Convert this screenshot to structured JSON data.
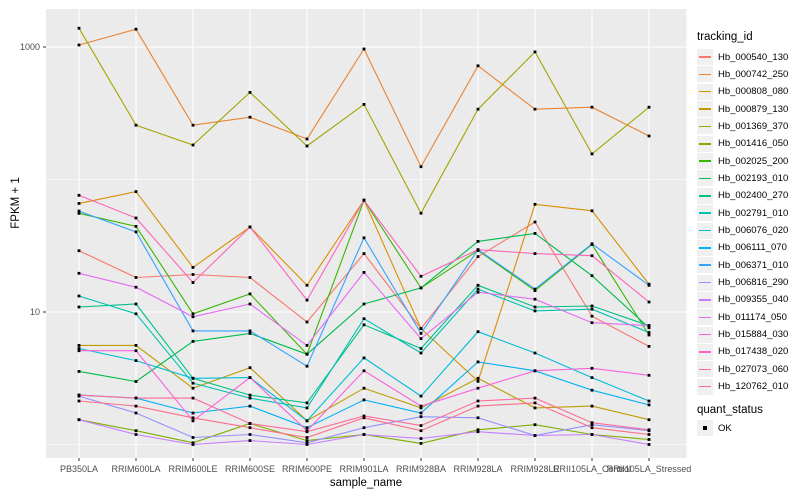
{
  "axes": {
    "x_title": "sample_name",
    "y_title": "FPKM + 1",
    "y_ticks": [
      {
        "label": "1000",
        "value": 1000
      },
      {
        "label": "10",
        "value": 10
      }
    ],
    "y_minor_values": [
      100,
      1
    ]
  },
  "legend": {
    "tracking_title": "tracking_id",
    "quant_title": "quant_status",
    "quant_items": [
      {
        "label": "OK",
        "marker": "black-square"
      }
    ]
  },
  "colors": {
    "panel_background": "#EBEBEB",
    "gridline": "#FFFFFF",
    "tick_mark": "#333333",
    "tick_text": "#4D4D4D",
    "marker": "#000000",
    "legend_key_background": "#F0F0F0"
  },
  "chart_data": {
    "type": "line",
    "x_type": "categorical",
    "y_scale": "log10",
    "ylim": [
      1,
      1500
    ],
    "grid": "major-white-on-grey-panel",
    "legend_position": "right",
    "marker": "black-square",
    "title": "",
    "xlabel": "sample_name",
    "ylabel": "FPKM + 1",
    "categories": [
      "PB350LA",
      "RRIM600LA",
      "RRIM600LE",
      "RRIM600SE",
      "RRIM600PE",
      "RRIM901LA",
      "RRIM928BA",
      "RRIM928LA",
      "RRIM928LE",
      "RRII105LA_Control",
      "RRII105LA_Stressed"
    ],
    "series": [
      {
        "name": "Hb_000540_130",
        "color": "#F8766D",
        "values": [
          29,
          18.2,
          19.2,
          18.2,
          8.4,
          27.6,
          7.5,
          26.2,
          47.8,
          9.3,
          5.5
        ]
      },
      {
        "name": "Hb_000742_250",
        "color": "#EA8331",
        "values": [
          1035,
          1362,
          257,
          295,
          202,
          966,
          125,
          721,
          339,
          351,
          213
        ]
      },
      {
        "name": "Hb_000808_080",
        "color": "#D89000",
        "values": [
          66,
          81,
          21.7,
          43.8,
          15.9,
          69.8,
          7.5,
          3.0,
          65,
          58,
          16.2
        ]
      },
      {
        "name": "Hb_000879_130",
        "color": "#C09B00",
        "values": [
          5.6,
          5.6,
          2.66,
          3.8,
          1.51,
          2.66,
          1.89,
          3.16,
          1.89,
          1.95,
          1.54
        ]
      },
      {
        "name": "Hb_001369_370",
        "color": "#A3A500",
        "values": [
          1387,
          257,
          182,
          454,
          179,
          369,
          55.7,
          339,
          918,
          156,
          351
        ]
      },
      {
        "name": "Hb_001416_050",
        "color": "#7CAE00",
        "values": [
          1.54,
          1.27,
          1.03,
          1.44,
          1.07,
          1.19,
          1.02,
          1.29,
          1.41,
          1.19,
          1.09
        ]
      },
      {
        "name": "Hb_002025_200",
        "color": "#39B600",
        "values": [
          55.6,
          44.3,
          9.7,
          13.7,
          4.8,
          69.8,
          15.2,
          29.1,
          14.5,
          32.3,
          6.7
        ]
      },
      {
        "name": "Hb_002193_010",
        "color": "#00BB4E",
        "values": [
          3.56,
          2.99,
          6.0,
          6.9,
          4.8,
          11.5,
          15.2,
          34.1,
          39.2,
          18.8,
          7.6
        ]
      },
      {
        "name": "Hb_002400_270",
        "color": "#00C087",
        "values": [
          10.9,
          11.5,
          3.16,
          2.36,
          2.06,
          8.0,
          5.3,
          15.9,
          10.9,
          11.1,
          7.9
        ]
      },
      {
        "name": "Hb_002791_010",
        "color": "#00C0B2",
        "values": [
          13.2,
          9.7,
          2.9,
          2.24,
          1.89,
          8.9,
          4.9,
          14.9,
          10.2,
          10.5,
          7.0
        ]
      },
      {
        "name": "Hb_006076_020",
        "color": "#00BCD8",
        "values": [
          5.3,
          4.3,
          3.16,
          3.2,
          1.51,
          4.5,
          2.32,
          7.1,
          4.9,
          3.2,
          2.13
        ]
      },
      {
        "name": "Hb_006111_070",
        "color": "#00B0F6",
        "values": [
          2.36,
          2.24,
          1.73,
          1.95,
          1.34,
          2.17,
          1.73,
          4.2,
          3.6,
          2.57,
          1.99
        ]
      },
      {
        "name": "Hb_006371_010",
        "color": "#35A2FF",
        "values": [
          57.7,
          40.2,
          7.2,
          7.2,
          3.9,
          36.3,
          6.9,
          29.5,
          14.9,
          32.7,
          15.9
        ]
      },
      {
        "name": "Hb_006816_290",
        "color": "#9590FF",
        "values": [
          2.32,
          1.73,
          1.13,
          1.19,
          1.03,
          1.34,
          1.62,
          1.59,
          1.17,
          1.41,
          1.27
        ]
      },
      {
        "name": "Hb_009355_040",
        "color": "#C77CFF",
        "values": [
          1.54,
          1.19,
          1.0,
          1.07,
          1.0,
          1.19,
          1.11,
          1.25,
          1.17,
          1.19,
          1.0
        ]
      },
      {
        "name": "Hb_011174_050",
        "color": "#E76BF3",
        "values": [
          19.6,
          15.4,
          9.2,
          11.5,
          5.6,
          19.9,
          6.3,
          14.1,
          12.5,
          8.3,
          7.9
        ]
      },
      {
        "name": "Hb_015884_030",
        "color": "#FA62DB",
        "values": [
          5.1,
          5.1,
          1.51,
          3.2,
          1.27,
          3.6,
          1.95,
          2.66,
          3.6,
          3.76,
          3.33
        ]
      },
      {
        "name": "Hb_017438_020",
        "color": "#FF62BC",
        "values": [
          76,
          51.2,
          16.7,
          43.8,
          12.3,
          69.8,
          18.6,
          29.5,
          27.6,
          26.6,
          11.9
        ]
      },
      {
        "name": "Hb_027073_060",
        "color": "#FF6A98",
        "values": [
          2.36,
          2.24,
          2.24,
          1.44,
          1.25,
          1.64,
          1.39,
          2.13,
          2.24,
          1.46,
          1.29
        ]
      },
      {
        "name": "Hb_120762_010",
        "color": "#FE6E88",
        "values": [
          2.13,
          1.95,
          1.59,
          1.34,
          1.13,
          1.59,
          1.27,
          1.95,
          2.06,
          1.34,
          1.19
        ]
      }
    ]
  }
}
